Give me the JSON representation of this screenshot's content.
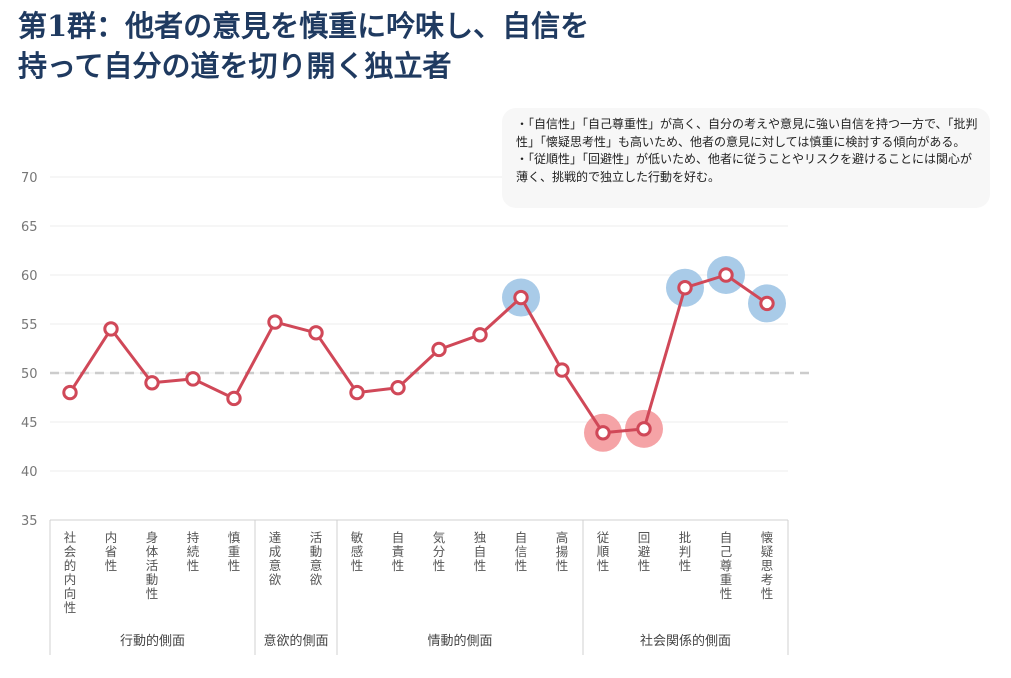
{
  "title": {
    "line1": "第1群：他者の意見を慎重に吟味し、自信を",
    "line2": "持って自分の道を切り開く独立者"
  },
  "note": {
    "line1": "・「自信性」「自己尊重性」が高く、自分の考えや意見に強い自信を持つ一方で、「批判性」「懐疑思考性」も高いため、他者の意見に対しては慎重に検討する傾向がある。",
    "line2": "・「従順性」「回避性」が低いため、他者に従うことやリスクを避けることには関心が薄く、挑戦的で独立した行動を好む。"
  },
  "colors": {
    "line": "#d04858",
    "high_highlight": "#a9cbe8",
    "low_highlight": "#f5a3a6",
    "reference": "#cccccc"
  },
  "chart_data": {
    "type": "line",
    "categories": [
      "社会的内向性",
      "内省性",
      "身体活動性",
      "持続性",
      "慎重性",
      "達成意欲",
      "活動意欲",
      "敏感性",
      "自責性",
      "気分性",
      "独自性",
      "自信性",
      "高揚性",
      "従順性",
      "回避性",
      "批判性",
      "自己尊重性",
      "懐疑思考性"
    ],
    "values": [
      48.0,
      54.5,
      49.0,
      49.4,
      47.4,
      55.2,
      54.1,
      48.0,
      48.5,
      52.4,
      53.9,
      57.7,
      50.3,
      43.9,
      44.3,
      58.7,
      60.0,
      57.1
    ],
    "highlights": [
      {
        "category": "自信性",
        "level": "high"
      },
      {
        "category": "回避性",
        "level": "low"
      },
      {
        "category": "従順性",
        "level": "low"
      },
      {
        "category": "批判性",
        "level": "high"
      },
      {
        "category": "自己尊重性",
        "level": "high"
      },
      {
        "category": "懐疑思考性",
        "level": "high"
      }
    ],
    "groups": [
      {
        "label": "行動的側面",
        "count": 5
      },
      {
        "label": "意欲的側面",
        "count": 2
      },
      {
        "label": "情動的側面",
        "count": 6
      },
      {
        "label": "社会関係的側面",
        "count": 5
      }
    ],
    "ylim": [
      35,
      70
    ],
    "yticks": [
      35,
      40,
      45,
      50,
      55,
      60,
      65,
      70
    ],
    "reference_line": 50,
    "title": "",
    "xlabel": "",
    "ylabel": ""
  }
}
